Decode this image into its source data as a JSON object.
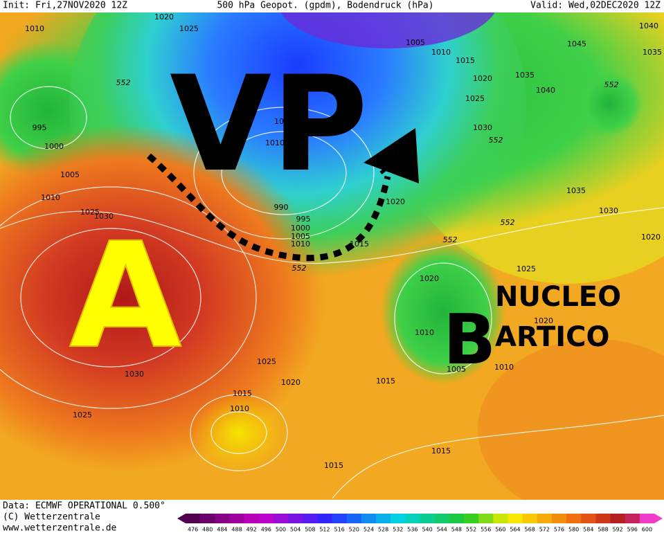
{
  "header": {
    "init": "Init: Fri,27NOV2020 12Z",
    "title": "500 hPa Geopot. (gpdm), Bodendruck (hPa)",
    "valid": "Valid: Wed,02DEC2020 12Z"
  },
  "annotations": {
    "polar_vortex": "VP",
    "high": "A",
    "low": "B",
    "nucleo": "NUCLEO",
    "artico": "ARTICO"
  },
  "isobar_labels": [
    1010,
    1020,
    1025,
    1005,
    1010,
    1015,
    1020,
    1025,
    1030,
    1035,
    1040,
    1045,
    1040,
    1035,
    995,
    1000,
    1005,
    1010,
    1025,
    1030,
    990,
    995,
    1000,
    1005,
    1010,
    1015,
    1020,
    1035,
    1030,
    1020,
    1025,
    1020,
    1020,
    1010,
    1005,
    1010,
    1015,
    1020,
    1025,
    1030,
    1025,
    1015,
    1010,
    1015,
    1015,
    1015,
    1010
  ],
  "contour_labels": [
    552,
    552,
    552,
    552,
    552,
    552
  ],
  "footer": {
    "data": "Data: ECMWF OPERATIONAL 0.500°",
    "copyright": "(C) Wetterzentrale",
    "url": "www.wetterzentrale.de"
  },
  "colorbar": {
    "ticks": [
      476,
      480,
      484,
      488,
      492,
      496,
      500,
      504,
      508,
      512,
      516,
      520,
      524,
      528,
      532,
      536,
      540,
      544,
      548,
      552,
      556,
      560,
      564,
      568,
      572,
      576,
      580,
      584,
      588,
      592,
      596,
      600
    ]
  }
}
